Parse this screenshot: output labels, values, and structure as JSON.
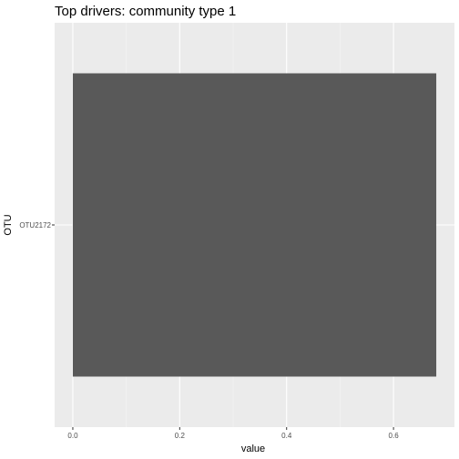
{
  "chart_data": {
    "type": "bar",
    "orientation": "horizontal",
    "title": "Top drivers: community type 1",
    "xlabel": "value",
    "ylabel": "OTU",
    "categories": [
      "OTU2172"
    ],
    "values": [
      0.68
    ],
    "xlim": [
      -0.034,
      0.714
    ],
    "xticks": [
      0.0,
      0.2,
      0.4,
      0.6
    ],
    "xtick_labels": [
      "0.0",
      "0.2",
      "0.4",
      "0.6"
    ],
    "grid": true,
    "legend": "none",
    "colors": {
      "panel_background": "#ebebeb",
      "grid_major": "#ffffff",
      "grid_minor": "#f5f5f5",
      "bar_fill": "#595959",
      "tick_color": "#333333"
    }
  }
}
